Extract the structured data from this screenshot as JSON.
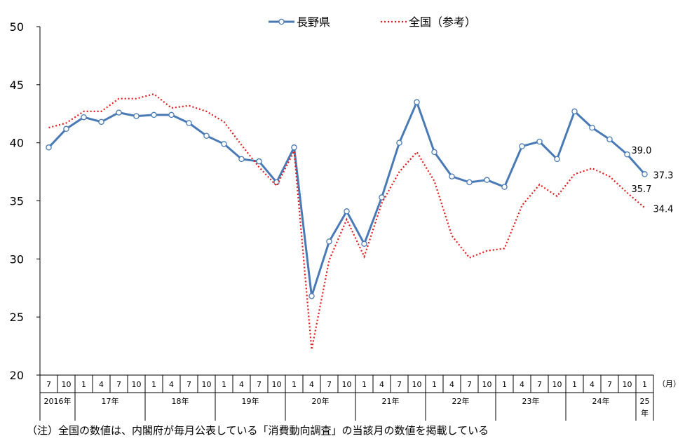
{
  "chart_data": {
    "type": "line",
    "title": "",
    "xlabel": "",
    "ylabel": "",
    "ylim": [
      20,
      50
    ],
    "y_ticks": [
      "20",
      "25",
      "30",
      "35",
      "40",
      "45",
      "50"
    ],
    "grid": false,
    "legend_position": "top-center",
    "month_unit_label": "（月）",
    "x_month_labels": [
      "7",
      "10",
      "1",
      "4",
      "7",
      "10",
      "1",
      "4",
      "7",
      "10",
      "1",
      "4",
      "7",
      "10",
      "1",
      "4",
      "7",
      "10",
      "1",
      "4",
      "7",
      "10",
      "1",
      "4",
      "7",
      "10",
      "1",
      "4",
      "7",
      "10",
      "1",
      "4",
      "7",
      "10",
      "1"
    ],
    "year_groups": [
      {
        "label": "2016年",
        "count": 2
      },
      {
        "label": "17年",
        "count": 4
      },
      {
        "label": "18年",
        "count": 4
      },
      {
        "label": "19年",
        "count": 4
      },
      {
        "label": "20年",
        "count": 4
      },
      {
        "label": "21年",
        "count": 4
      },
      {
        "label": "22年",
        "count": 4
      },
      {
        "label": "23年",
        "count": 4
      },
      {
        "label": "24年",
        "count": 4
      },
      {
        "label": "25年",
        "count": 1
      }
    ],
    "series": [
      {
        "name": "長野県",
        "color": "#4a7ab5",
        "style": "solid-markers",
        "values": [
          39.6,
          41.2,
          42.2,
          41.8,
          42.6,
          42.3,
          42.4,
          42.4,
          41.7,
          40.6,
          39.9,
          38.6,
          38.4,
          36.6,
          39.6,
          26.8,
          31.5,
          34.1,
          31.3,
          35.3,
          40.0,
          43.5,
          39.2,
          37.1,
          36.6,
          36.8,
          36.2,
          39.7,
          40.1,
          38.6,
          42.7,
          41.3,
          40.3,
          39.0,
          37.3
        ],
        "end_labels": {
          "33": "39.0",
          "34": "37.3"
        }
      },
      {
        "name": "全国（参考）",
        "color": "#e41a1c",
        "style": "dotted",
        "values": [
          41.3,
          41.7,
          42.7,
          42.7,
          43.8,
          43.8,
          44.2,
          43.0,
          43.2,
          42.7,
          41.8,
          39.8,
          37.9,
          36.3,
          39.3,
          22.2,
          29.9,
          33.4,
          30.2,
          34.8,
          37.5,
          39.2,
          36.7,
          32.0,
          30.1,
          30.7,
          30.9,
          34.6,
          36.4,
          35.4,
          37.3,
          37.8,
          37.1,
          35.7,
          34.4
        ],
        "end_labels": {
          "33": "35.7",
          "34": "34.4"
        }
      }
    ]
  },
  "footnote": "（注）全国の数値は、内閣府が毎月公表している「消費動向調査」の当該月の数値を掲載している"
}
